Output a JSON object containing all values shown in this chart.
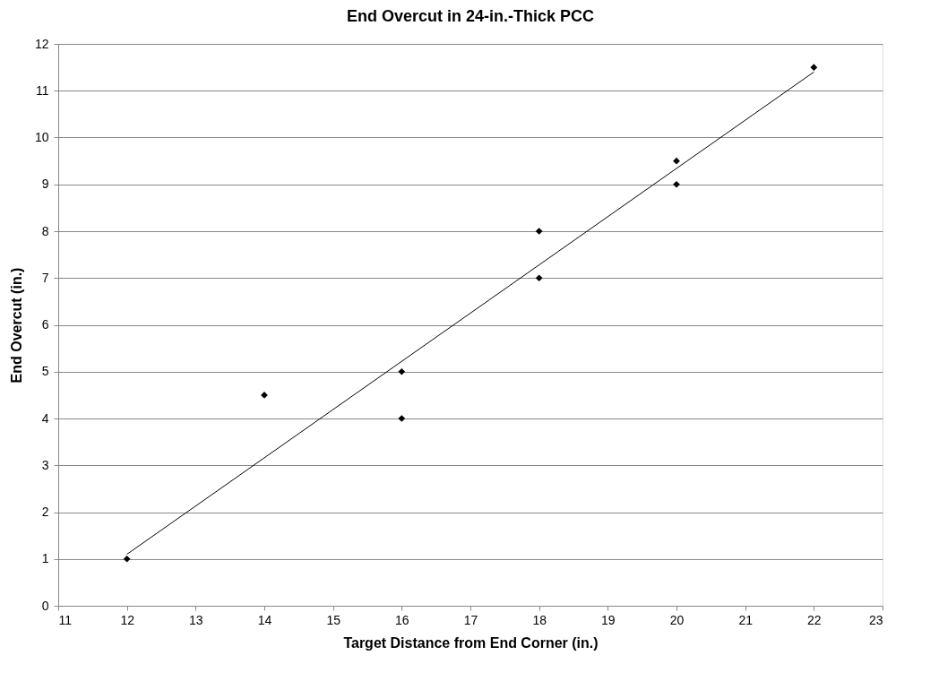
{
  "chart_data": {
    "type": "scatter",
    "title": "End Overcut in 24-in.-Thick PCC",
    "xlabel": "Target Distance from End Corner (in.)",
    "ylabel": "End Overcut (in.)",
    "x": [
      12,
      14,
      16,
      16,
      18,
      18,
      20,
      20,
      22
    ],
    "series": [
      {
        "color": "#000000",
        "values": [
          1,
          4.5,
          5,
          4,
          8,
          7,
          9.5,
          9,
          11.5
        ]
      },
      {
        "type": "line",
        "color": "#000000",
        "x": [
          12,
          22
        ],
        "values": [
          1.1,
          11.4
        ],
        "marker": "none"
      }
    ],
    "xlim": [
      11,
      23
    ],
    "xticks": [
      11,
      12,
      13,
      14,
      15,
      16,
      17,
      18,
      19,
      20,
      21,
      22,
      23
    ],
    "ylim": [
      0,
      12
    ],
    "yticks": [
      0,
      1,
      2,
      3,
      4,
      5,
      6,
      7,
      8,
      9,
      10,
      11,
      12
    ],
    "grid": "y",
    "marker": "diamond"
  }
}
